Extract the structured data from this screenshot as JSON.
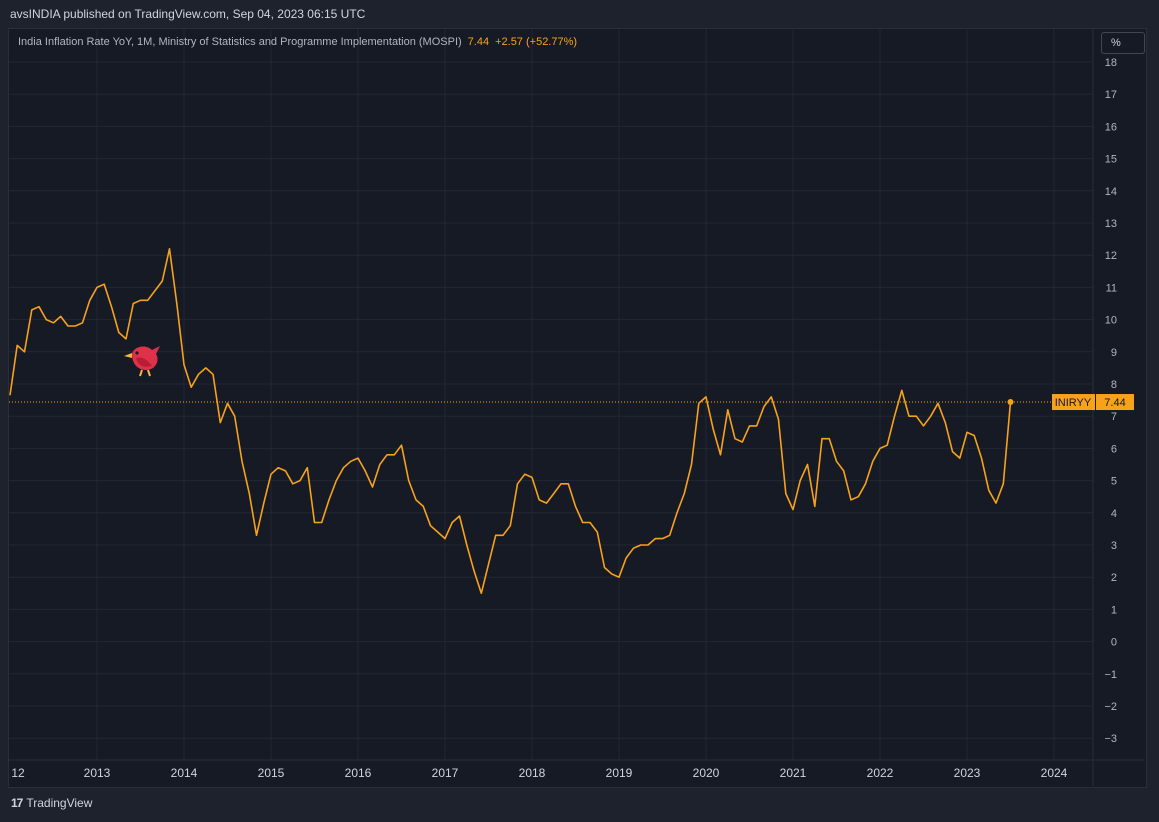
{
  "header": {
    "published": "avsINDIA published on TradingView.com, Sep 04, 2023 06:15 UTC"
  },
  "legend": {
    "title": "India Inflation Rate YoY, 1M, Ministry of Statistics and Programme Implementation (MOSPI)",
    "value": "7.44",
    "change": "+2.57 (+52.77%)"
  },
  "unit_button": "%",
  "price_label": {
    "symbol": "INIRYY",
    "value": "7.44"
  },
  "footer": {
    "brand": "TradingView",
    "logo": "17"
  },
  "colors": {
    "line": "#f7a21b",
    "background": "#161a25",
    "grid": "#232733",
    "text": "#b2b5be"
  },
  "icons": {
    "marker": "red-bird-icon"
  },
  "chart_data": {
    "type": "line",
    "title": "India Inflation Rate YoY",
    "ylabel": "%",
    "ylim": [
      -3,
      18
    ],
    "y_ticks": [
      "18",
      "17",
      "16",
      "15",
      "14",
      "13",
      "12",
      "11",
      "10",
      "9",
      "8",
      "7",
      "6",
      "5",
      "4",
      "3",
      "2",
      "1",
      "0",
      "−1",
      "−2",
      "−3"
    ],
    "x_ticks": [
      "12",
      "2013",
      "2014",
      "2015",
      "2016",
      "2017",
      "2018",
      "2019",
      "2020",
      "2021",
      "2022",
      "2023",
      "2024"
    ],
    "grid": true,
    "series": [
      {
        "name": "INIRYY",
        "points": [
          [
            "2012-01",
            7.65
          ],
          [
            "2012-02",
            9.2
          ],
          [
            "2012-03",
            9.0
          ],
          [
            "2012-04",
            10.3
          ],
          [
            "2012-05",
            10.4
          ],
          [
            "2012-06",
            10.0
          ],
          [
            "2012-07",
            9.9
          ],
          [
            "2012-08",
            10.1
          ],
          [
            "2012-09",
            9.8
          ],
          [
            "2012-10",
            9.8
          ],
          [
            "2012-11",
            9.9
          ],
          [
            "2012-12",
            10.6
          ],
          [
            "2013-01",
            11.0
          ],
          [
            "2013-02",
            11.1
          ],
          [
            "2013-03",
            10.4
          ],
          [
            "2013-04",
            9.6
          ],
          [
            "2013-05",
            9.4
          ],
          [
            "2013-06",
            10.5
          ],
          [
            "2013-07",
            10.6
          ],
          [
            "2013-08",
            10.6
          ],
          [
            "2013-09",
            10.9
          ],
          [
            "2013-10",
            11.2
          ],
          [
            "2013-11",
            12.2
          ],
          [
            "2013-12",
            10.5
          ],
          [
            "2014-01",
            8.6
          ],
          [
            "2014-02",
            7.9
          ],
          [
            "2014-03",
            8.3
          ],
          [
            "2014-04",
            8.5
          ],
          [
            "2014-05",
            8.3
          ],
          [
            "2014-06",
            6.8
          ],
          [
            "2014-07",
            7.4
          ],
          [
            "2014-08",
            7.0
          ],
          [
            "2014-09",
            5.6
          ],
          [
            "2014-10",
            4.6
          ],
          [
            "2014-11",
            3.3
          ],
          [
            "2014-12",
            4.3
          ],
          [
            "2015-01",
            5.2
          ],
          [
            "2015-02",
            5.4
          ],
          [
            "2015-03",
            5.3
          ],
          [
            "2015-04",
            4.9
          ],
          [
            "2015-05",
            5.0
          ],
          [
            "2015-06",
            5.4
          ],
          [
            "2015-07",
            3.7
          ],
          [
            "2015-08",
            3.7
          ],
          [
            "2015-09",
            4.4
          ],
          [
            "2015-10",
            5.0
          ],
          [
            "2015-11",
            5.4
          ],
          [
            "2015-12",
            5.6
          ],
          [
            "2016-01",
            5.7
          ],
          [
            "2016-02",
            5.3
          ],
          [
            "2016-03",
            4.8
          ],
          [
            "2016-04",
            5.5
          ],
          [
            "2016-05",
            5.8
          ],
          [
            "2016-06",
            5.8
          ],
          [
            "2016-07",
            6.1
          ],
          [
            "2016-08",
            5.0
          ],
          [
            "2016-09",
            4.4
          ],
          [
            "2016-10",
            4.2
          ],
          [
            "2016-11",
            3.6
          ],
          [
            "2016-12",
            3.4
          ],
          [
            "2017-01",
            3.2
          ],
          [
            "2017-02",
            3.7
          ],
          [
            "2017-03",
            3.9
          ],
          [
            "2017-04",
            3.0
          ],
          [
            "2017-05",
            2.2
          ],
          [
            "2017-06",
            1.5
          ],
          [
            "2017-07",
            2.4
          ],
          [
            "2017-08",
            3.3
          ],
          [
            "2017-09",
            3.3
          ],
          [
            "2017-10",
            3.6
          ],
          [
            "2017-11",
            4.9
          ],
          [
            "2017-12",
            5.2
          ],
          [
            "2018-01",
            5.1
          ],
          [
            "2018-02",
            4.4
          ],
          [
            "2018-03",
            4.3
          ],
          [
            "2018-04",
            4.6
          ],
          [
            "2018-05",
            4.9
          ],
          [
            "2018-06",
            4.9
          ],
          [
            "2018-07",
            4.2
          ],
          [
            "2018-08",
            3.7
          ],
          [
            "2018-09",
            3.7
          ],
          [
            "2018-10",
            3.4
          ],
          [
            "2018-11",
            2.3
          ],
          [
            "2018-12",
            2.1
          ],
          [
            "2019-01",
            2.0
          ],
          [
            "2019-02",
            2.6
          ],
          [
            "2019-03",
            2.9
          ],
          [
            "2019-04",
            3.0
          ],
          [
            "2019-05",
            3.0
          ],
          [
            "2019-06",
            3.2
          ],
          [
            "2019-07",
            3.2
          ],
          [
            "2019-08",
            3.3
          ],
          [
            "2019-09",
            4.0
          ],
          [
            "2019-10",
            4.6
          ],
          [
            "2019-11",
            5.5
          ],
          [
            "2019-12",
            7.4
          ],
          [
            "2020-01",
            7.6
          ],
          [
            "2020-02",
            6.6
          ],
          [
            "2020-03",
            5.8
          ],
          [
            "2020-04",
            7.2
          ],
          [
            "2020-05",
            6.3
          ],
          [
            "2020-06",
            6.2
          ],
          [
            "2020-07",
            6.7
          ],
          [
            "2020-08",
            6.7
          ],
          [
            "2020-09",
            7.3
          ],
          [
            "2020-10",
            7.6
          ],
          [
            "2020-11",
            6.9
          ],
          [
            "2020-12",
            4.6
          ],
          [
            "2021-01",
            4.1
          ],
          [
            "2021-02",
            5.0
          ],
          [
            "2021-03",
            5.5
          ],
          [
            "2021-04",
            4.2
          ],
          [
            "2021-05",
            6.3
          ],
          [
            "2021-06",
            6.3
          ],
          [
            "2021-07",
            5.6
          ],
          [
            "2021-08",
            5.3
          ],
          [
            "2021-09",
            4.4
          ],
          [
            "2021-10",
            4.5
          ],
          [
            "2021-11",
            4.9
          ],
          [
            "2021-12",
            5.6
          ],
          [
            "2022-01",
            6.0
          ],
          [
            "2022-02",
            6.1
          ],
          [
            "2022-03",
            7.0
          ],
          [
            "2022-04",
            7.8
          ],
          [
            "2022-05",
            7.0
          ],
          [
            "2022-06",
            7.0
          ],
          [
            "2022-07",
            6.7
          ],
          [
            "2022-08",
            7.0
          ],
          [
            "2022-09",
            7.4
          ],
          [
            "2022-10",
            6.8
          ],
          [
            "2022-11",
            5.9
          ],
          [
            "2022-12",
            5.7
          ],
          [
            "2023-01",
            6.5
          ],
          [
            "2023-02",
            6.4
          ],
          [
            "2023-03",
            5.7
          ],
          [
            "2023-04",
            4.7
          ],
          [
            "2023-05",
            4.3
          ],
          [
            "2023-06",
            4.9
          ],
          [
            "2023-07",
            7.44
          ]
        ]
      }
    ],
    "last_value": 7.44,
    "legend": "none"
  }
}
